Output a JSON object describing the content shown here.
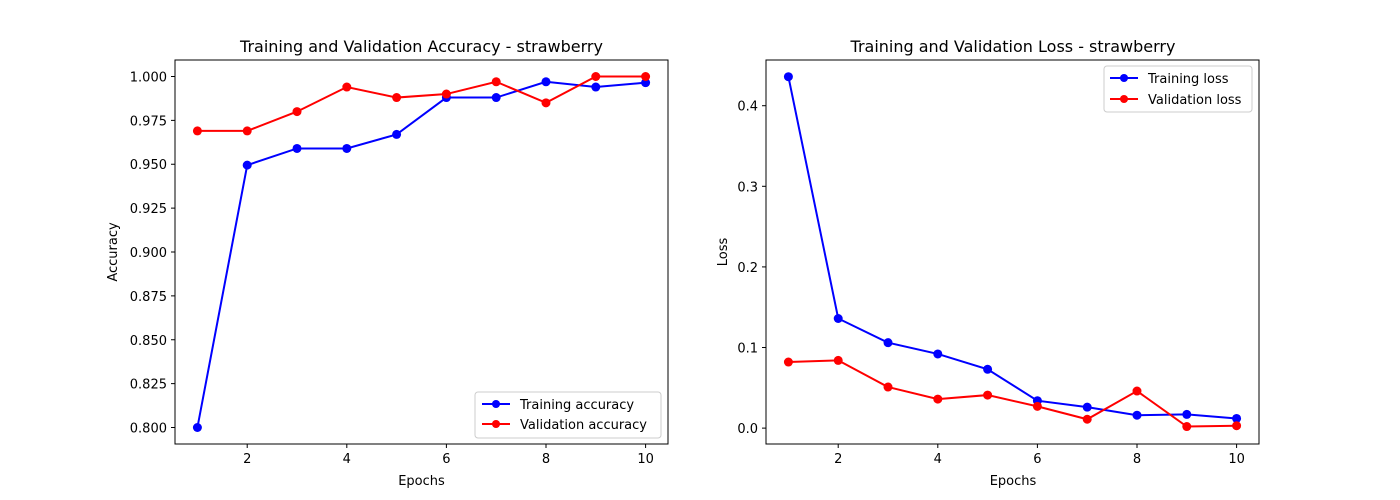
{
  "chart_data": [
    {
      "type": "line",
      "title": "Training and Validation Accuracy - strawberry",
      "xlabel": "Epochs",
      "ylabel": "Accuracy",
      "x": [
        1,
        2,
        3,
        4,
        5,
        6,
        7,
        8,
        9,
        10
      ],
      "xlim": [
        0.55,
        10.45
      ],
      "ylim": [
        0.7906,
        1.0094
      ],
      "xticks": [
        2,
        4,
        6,
        8,
        10
      ],
      "yticks": [
        0.8,
        0.825,
        0.85,
        0.875,
        0.9,
        0.925,
        0.95,
        0.975,
        1.0
      ],
      "ytick_labels": [
        "0.800",
        "0.825",
        "0.850",
        "0.875",
        "0.900",
        "0.925",
        "0.950",
        "0.975",
        "1.000"
      ],
      "legend_position": "lower right",
      "grid": false,
      "series": [
        {
          "name": "Training accuracy",
          "color": "#0000ff",
          "values": [
            0.8,
            0.9495,
            0.959,
            0.959,
            0.967,
            0.988,
            0.988,
            0.997,
            0.994,
            0.9965
          ]
        },
        {
          "name": "Validation accuracy",
          "color": "#ff0000",
          "values": [
            0.969,
            0.969,
            0.98,
            0.994,
            0.988,
            0.99,
            0.997,
            0.985,
            1.0,
            1.0
          ]
        }
      ]
    },
    {
      "type": "line",
      "title": "Training and Validation Loss - strawberry",
      "xlabel": "Epochs",
      "ylabel": "Loss",
      "x": [
        1,
        2,
        3,
        4,
        5,
        6,
        7,
        8,
        9,
        10
      ],
      "xlim": [
        0.55,
        10.45
      ],
      "ylim": [
        -0.0197,
        0.4567
      ],
      "xticks": [
        2,
        4,
        6,
        8,
        10
      ],
      "yticks": [
        0.0,
        0.1,
        0.2,
        0.3,
        0.4
      ],
      "ytick_labels": [
        "0.0",
        "0.1",
        "0.2",
        "0.3",
        "0.4"
      ],
      "legend_position": "upper right",
      "grid": false,
      "series": [
        {
          "name": "Training loss",
          "color": "#0000ff",
          "values": [
            0.436,
            0.136,
            0.106,
            0.092,
            0.073,
            0.034,
            0.026,
            0.016,
            0.017,
            0.012
          ]
        },
        {
          "name": "Validation loss",
          "color": "#ff0000",
          "values": [
            0.082,
            0.084,
            0.051,
            0.036,
            0.041,
            0.027,
            0.011,
            0.046,
            0.002,
            0.003
          ]
        }
      ]
    }
  ]
}
